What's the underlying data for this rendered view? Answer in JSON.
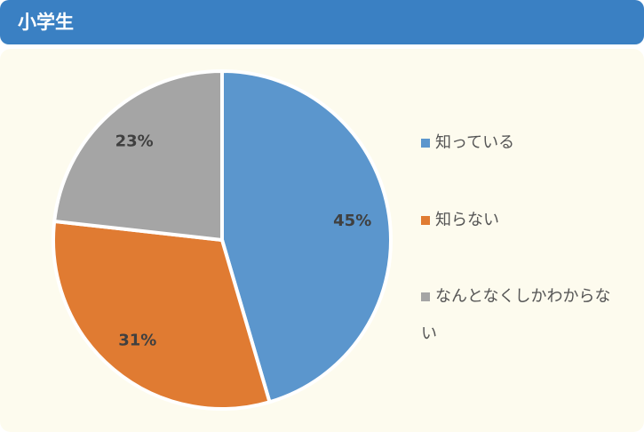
{
  "header": {
    "title": "小学生"
  },
  "chart_data": {
    "type": "pie",
    "categories": [
      "知っている",
      "知らない",
      "なんとなくしかわからない"
    ],
    "values": [
      45,
      31,
      23
    ],
    "value_labels": [
      "45%",
      "31%",
      "23%"
    ],
    "colors": [
      "#5b96cd",
      "#e07b32",
      "#a5a5a5"
    ],
    "legend": "right"
  }
}
